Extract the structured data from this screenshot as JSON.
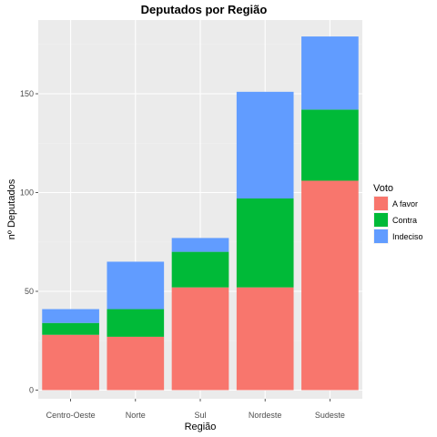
{
  "chart_data": {
    "type": "bar",
    "stacked": true,
    "title": "Deputados por Região",
    "xlabel": "Região",
    "ylabel": "nº Deputados",
    "categories": [
      "Centro-Oeste",
      "Norte",
      "Sul",
      "Nordeste",
      "Sudeste"
    ],
    "series": [
      {
        "name": "A favor",
        "color": "#F8766D",
        "values": [
          28,
          27,
          52,
          52,
          106
        ]
      },
      {
        "name": "Contra",
        "color": "#00BA38",
        "values": [
          6,
          14,
          18,
          45,
          36
        ]
      },
      {
        "name": "Indeciso",
        "color": "#619CFF",
        "values": [
          7,
          24,
          7,
          54,
          37
        ]
      }
    ],
    "ylim": [
      0,
      187
    ],
    "yticks": [
      0,
      50,
      100,
      150
    ],
    "legend": {
      "title": "Voto",
      "position": "right"
    },
    "grid": true,
    "background": "#EBEBEB"
  }
}
